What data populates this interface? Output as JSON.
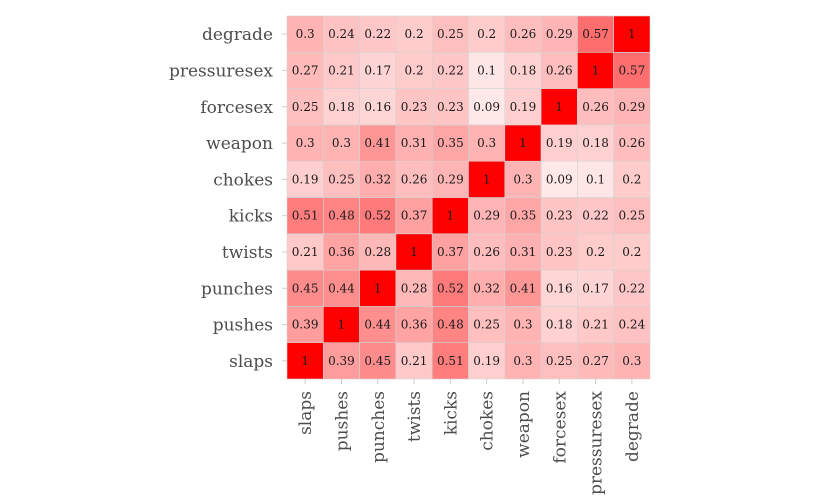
{
  "chart_data": {
    "type": "heatmap",
    "title": "",
    "xlabel": "",
    "ylabel": "",
    "variables": [
      "slaps",
      "pushes",
      "punches",
      "twists",
      "kicks",
      "chokes",
      "weapon",
      "forcesex",
      "pressuresex",
      "degrade"
    ],
    "values": [
      [
        1,
        0.39,
        0.45,
        0.21,
        0.51,
        0.19,
        0.3,
        0.25,
        0.27,
        0.3
      ],
      [
        0.39,
        1,
        0.44,
        0.36,
        0.48,
        0.25,
        0.3,
        0.18,
        0.21,
        0.24
      ],
      [
        0.45,
        0.44,
        1,
        0.28,
        0.52,
        0.32,
        0.41,
        0.16,
        0.17,
        0.22
      ],
      [
        0.21,
        0.36,
        0.28,
        1,
        0.37,
        0.26,
        0.31,
        0.23,
        0.2,
        0.2
      ],
      [
        0.51,
        0.48,
        0.52,
        0.37,
        1,
        0.29,
        0.35,
        0.23,
        0.22,
        0.25
      ],
      [
        0.19,
        0.25,
        0.32,
        0.26,
        0.29,
        1,
        0.3,
        0.09,
        0.1,
        0.2
      ],
      [
        0.3,
        0.3,
        0.41,
        0.31,
        0.35,
        0.3,
        1,
        0.19,
        0.18,
        0.26
      ],
      [
        0.25,
        0.18,
        0.16,
        0.23,
        0.23,
        0.09,
        0.19,
        1,
        0.26,
        0.29
      ],
      [
        0.27,
        0.21,
        0.17,
        0.2,
        0.22,
        0.1,
        0.18,
        0.26,
        1,
        0.57
      ],
      [
        0.3,
        0.24,
        0.22,
        0.2,
        0.25,
        0.2,
        0.26,
        0.29,
        0.57,
        1
      ]
    ],
    "color_low": "#ffffff",
    "color_high": "#ff0000",
    "cell_border_color": "#d3d3d3",
    "legend": "none",
    "grid": false
  }
}
